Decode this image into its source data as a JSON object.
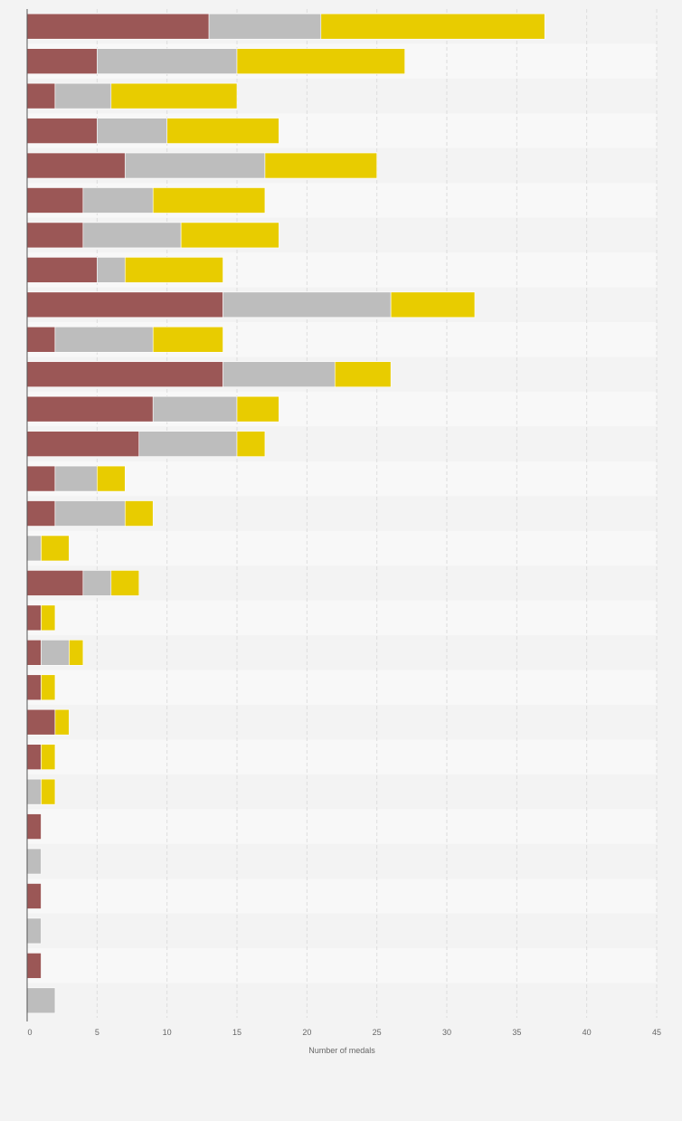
{
  "chart_data": {
    "type": "bar",
    "orientation": "horizontal",
    "stacked": true,
    "title": "",
    "xlabel": "Number of medals",
    "ylabel": "",
    "xlim": [
      0,
      45
    ],
    "xticks": [
      0,
      5,
      10,
      15,
      20,
      25,
      30,
      35,
      40,
      45
    ],
    "grid": "vertical-dashed",
    "legend": "none",
    "categories": [
      "",
      "",
      "",
      "",
      "",
      "",
      "",
      "",
      "",
      "",
      "",
      "",
      "",
      "",
      "",
      "",
      "",
      "",
      "",
      "",
      "",
      "",
      "",
      "",
      "",
      "",
      "",
      "",
      ""
    ],
    "series": [
      {
        "color": "#9b5756",
        "values": [
          13,
          5,
          2,
          5,
          7,
          4,
          4,
          5,
          14,
          2,
          14,
          9,
          8,
          2,
          2,
          0,
          4,
          1,
          1,
          1,
          2,
          1,
          0,
          1,
          0,
          1,
          0,
          1,
          0
        ]
      },
      {
        "color": "#bdbdbd",
        "values": [
          8,
          10,
          4,
          5,
          10,
          5,
          7,
          2,
          12,
          7,
          8,
          6,
          7,
          3,
          5,
          1,
          2,
          0,
          2,
          0,
          0,
          0,
          1,
          0,
          1,
          0,
          1,
          0,
          2
        ]
      },
      {
        "color": "#e8cc00",
        "values": [
          16,
          12,
          9,
          8,
          8,
          8,
          7,
          7,
          6,
          5,
          4,
          3,
          2,
          2,
          2,
          2,
          2,
          1,
          1,
          1,
          1,
          1,
          1,
          0,
          0,
          0,
          0,
          0,
          0
        ]
      }
    ]
  },
  "style": {
    "row_bg_light": "#f8f8f8",
    "row_bg_dark": "#f3f3f3",
    "grid_color": "#dddddd",
    "axis_color": "#555555"
  }
}
